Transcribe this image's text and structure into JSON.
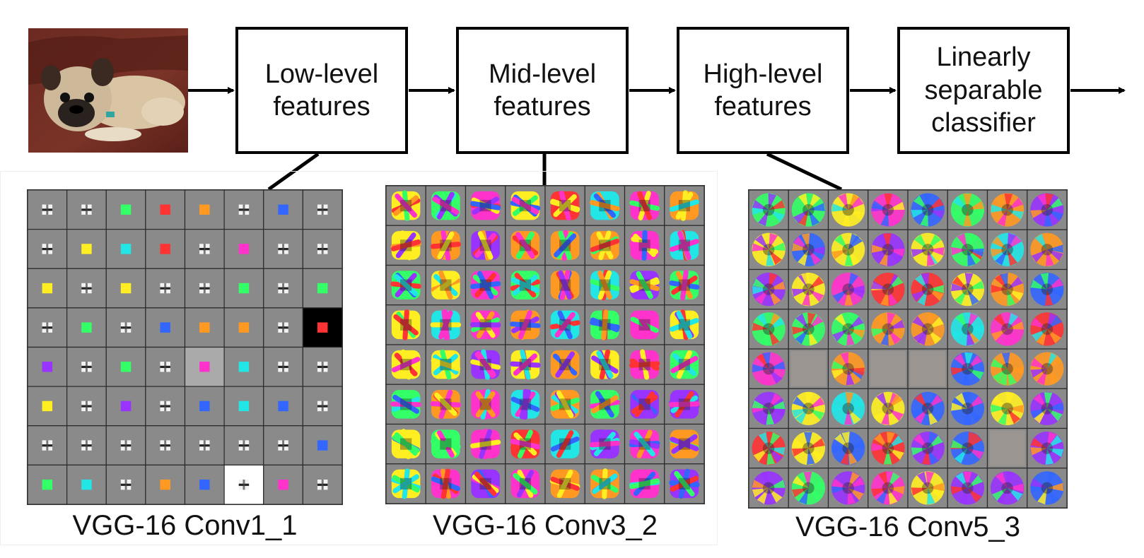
{
  "stages": [
    {
      "label": "Low-level\nfeatures"
    },
    {
      "label": "Mid-level\nfeatures"
    },
    {
      "label": "High-level\nfeatures"
    },
    {
      "label": "Linearly\nseparable\nclassifier"
    }
  ],
  "panels": [
    {
      "caption": "VGG-16 Conv1_1",
      "rows": 8,
      "cols": 8
    },
    {
      "caption": "VGG-16 Conv3_2",
      "rows": 8,
      "cols": 8
    },
    {
      "caption": "VGG-16 Conv5_3",
      "rows": 8,
      "cols": 8
    }
  ],
  "colors": {
    "cell_gray": "#8a8a8a",
    "grid_line": "#2a2a2a",
    "palette": [
      "#ff33cc",
      "#33ff66",
      "#3366ff",
      "#ffee22",
      "#ff3333",
      "#22e5e5",
      "#9933ff",
      "#ff9922"
    ]
  }
}
